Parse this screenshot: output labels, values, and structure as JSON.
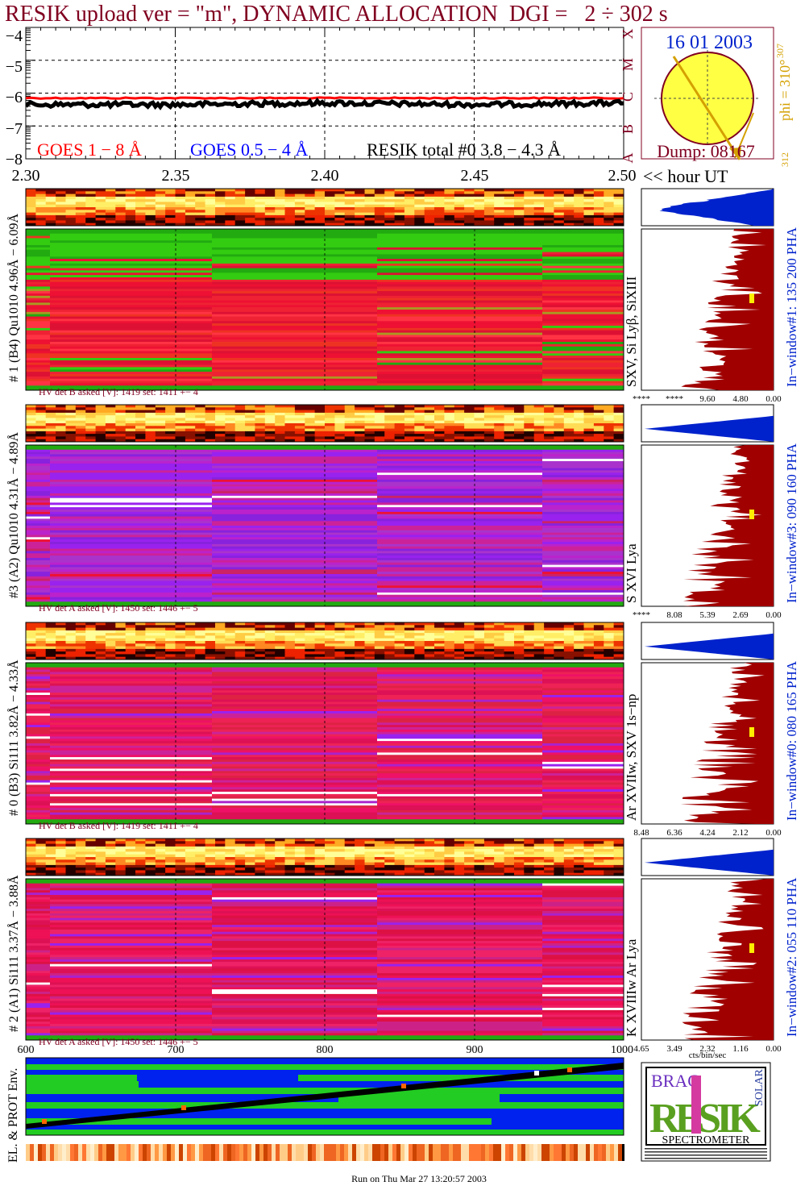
{
  "header": {
    "title": "RESIK upload ver = \"m\", DYNAMIC ALLOCATION  DGI =   2 ÷ 302 s"
  },
  "goes_panel": {
    "y_ticks": [
      "−4",
      "−5",
      "−6",
      "−7",
      "−8"
    ],
    "class_letters": [
      "X",
      "M",
      "C",
      "B",
      "A"
    ],
    "legend": {
      "goes_long": "GOES 1 − 8 Å",
      "goes_short": "GOES 0.5 − 4 Å",
      "resik_total": "RESIK total #0  3.8 − 4.3 Å"
    },
    "x_ticks": [
      "2.30",
      "2.35",
      "2.40",
      "2.45",
      "2.50"
    ],
    "x_unit": "<< hour UT"
  },
  "sun_panel": {
    "date": "16 01 2003",
    "dump": "Dump: 08167",
    "phi": "phi = 310°",
    "phi_super": "307",
    "phi_sub": "312"
  },
  "channels": [
    {
      "side_label": "# 1 (B4) Qu1010 4.96Å − 6.09Å",
      "lines": "SXV, Si Lyβ, SiXIII",
      "window": "In−window#1:  135 200 PHA",
      "hv": "HV det B asked [V]:  1419 set:  1411  +−    4",
      "pha_ticks": [
        "****",
        "****",
        "9.60",
        "4.80",
        "0.00"
      ]
    },
    {
      "side_label": "#3 (A2) Qu1010  4.31Å − 4.89Å",
      "lines": "S XVI Lya",
      "window": "In−window#3:  090 160 PHA",
      "hv": "HV det A asked [V]:  1450 set:  1446  +−    5",
      "pha_ticks": [
        "****",
        "8.08",
        "5.39",
        "2.69",
        "0.00"
      ]
    },
    {
      "side_label": "# 0 (B3) Si111  3.82Å − 4.33Å",
      "lines": "Ar XVIIw, SXV 1s−np",
      "window": "In−window#0:  080 165 PHA",
      "hv": "HV det B asked [V]:  1419 set:  1411  +−    4",
      "pha_ticks": [
        "8.48",
        "6.36",
        "4.24",
        "2.12",
        "0.00"
      ]
    },
    {
      "side_label": "# 2 (A1) Si111  3.37Å − 3.88Å",
      "lines": "K XVIIIw  Ar Lya",
      "window": "In−window#2:  055 110 PHA",
      "hv": "HV det A asked [V]:  1450 set:  1446  +−    5",
      "pha_ticks": [
        "4.65",
        "3.49",
        "2.32",
        "1.16",
        "0.00"
      ]
    }
  ],
  "pha_unit": "cts/bin/sec",
  "env_panel": {
    "x_ticks": [
      "600",
      "700",
      "800",
      "900",
      "1000"
    ],
    "side_label": "EL. & PROT Env."
  },
  "logo": {
    "top": "BRAG",
    "main": "RESIK",
    "solar": "SOLAR",
    "spectrometer": "SPECTROMETER"
  },
  "footer": {
    "run": "Run on Thu Mar 27 13:20:57 2003"
  },
  "colors": {
    "title": "#800020",
    "goes_long": "#ff0000",
    "goes_short": "#0000ff",
    "resik": "#000000",
    "pha_fill": "#a00000",
    "pha_top": "#0022cc",
    "sun": "#ffff44",
    "sun_text": "#d4a000"
  },
  "chart_data": [
    {
      "type": "line",
      "title": "",
      "xlabel": "<< hour UT",
      "ylabel": "",
      "xlim": [
        2.3,
        2.5
      ],
      "ylim": [
        -8,
        -4
      ],
      "series": [
        {
          "name": "GOES 1 − 8 Å",
          "x": [
            2.3,
            2.35,
            2.4,
            2.45,
            2.5
          ],
          "values": [
            -6.15,
            -6.15,
            -6.15,
            -6.15,
            -6.15
          ]
        },
        {
          "name": "RESIK total #0  3.8 − 4.3 Å",
          "x": [
            2.3,
            2.35,
            2.4,
            2.45,
            2.5
          ],
          "values": [
            -6.35,
            -6.35,
            -6.3,
            -6.35,
            -6.3
          ]
        }
      ]
    },
    {
      "type": "heatmap",
      "title": "",
      "note_channels": [
        "#1",
        "#3",
        "#0",
        "#2"
      ],
      "x_range_hours": [
        2.3,
        2.5
      ]
    },
    {
      "type": "line",
      "title": "",
      "xlim": [
        600,
        1000
      ],
      "series": []
    }
  ]
}
